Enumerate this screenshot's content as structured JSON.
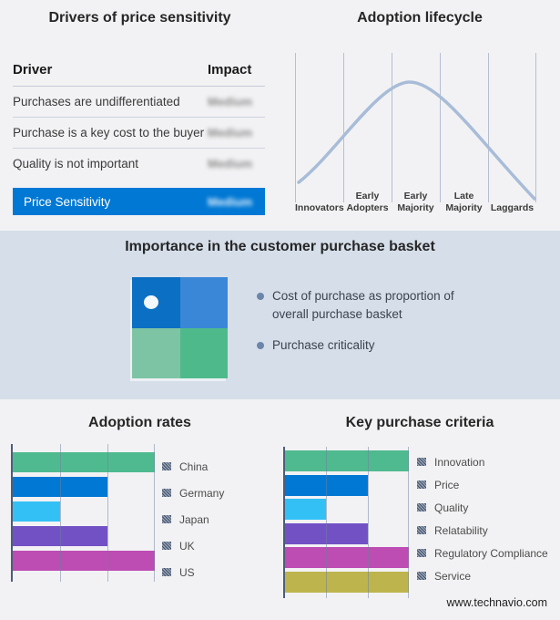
{
  "drivers_table": {
    "title": "Drivers of price sensitivity",
    "columns": {
      "driver": "Driver",
      "impact": "Impact"
    },
    "rows": [
      {
        "driver": "Purchases are undifferentiated",
        "impact": "Medium"
      },
      {
        "driver": "Purchase is a key cost to the buyer",
        "impact": "Medium"
      },
      {
        "driver": "Quality is not important",
        "impact": "Medium"
      }
    ],
    "highlight_row": {
      "driver": "Price Sensitivity",
      "impact": "Medium"
    },
    "highlight_color": "#0078d4",
    "note": "impact values appear blurred in source image"
  },
  "lifecycle": {
    "title": "Adoption lifecycle",
    "stages": [
      "Innovators",
      "Early Adopters",
      "Early Majority",
      "Late Majority",
      "Laggards"
    ],
    "curve_color": "#a8bcd8"
  },
  "basket": {
    "title": "Importance in the customer purchase basket",
    "bullets": [
      "Cost of purchase as proportion of overall purchase basket",
      "Purchase criticality"
    ],
    "quadrant_colors": {
      "tl": "#0b6fc4",
      "tr": "#3a87d8",
      "bl": "#7dc4a4",
      "br": "#4eba8b"
    },
    "marker_dot_color": "#f3f8fb",
    "background": "#d5dee9"
  },
  "adoption_rates_title": "Adoption rates",
  "key_purchase_title": "Key purchase criteria",
  "website": "www.technavio.com",
  "chart_data": [
    {
      "id": "adoption-lifecycle",
      "type": "line",
      "title": "Adoption lifecycle",
      "x_categories": [
        "Innovators",
        "Early Adopters",
        "Early Majority",
        "Late Majority",
        "Laggards"
      ],
      "shape": "bell curve peaking near the Early Majority segment",
      "curve_points_pct_x_y": [
        [
          2,
          13
        ],
        [
          20,
          45
        ],
        [
          35,
          75
        ],
        [
          48,
          100
        ],
        [
          62,
          72
        ],
        [
          80,
          38
        ],
        [
          99,
          2
        ]
      ],
      "y_axis": "adoption volume (unlabeled)",
      "grid": "vertical segment dividers only"
    },
    {
      "id": "adoption-rates",
      "type": "bar",
      "orientation": "horizontal",
      "title": "Adoption rates",
      "categories": [
        "China",
        "Germany",
        "Japan",
        "UK",
        "US"
      ],
      "values": [
        100,
        66.7,
        33.3,
        66.7,
        100
      ],
      "xlim": [
        0,
        100
      ],
      "axis_ticks_unlabeled": [
        0,
        33.3,
        66.7,
        100
      ],
      "colors": [
        "#4fba8f",
        "#0078d4",
        "#33c1f5",
        "#7251c5",
        "#bd4cb3"
      ],
      "legend_position": "right",
      "grid": true
    },
    {
      "id": "key-purchase-criteria",
      "type": "bar",
      "orientation": "horizontal",
      "title": "Key purchase criteria",
      "categories": [
        "Innovation",
        "Price",
        "Quality",
        "Relatability",
        "Regulatory Compliance",
        "Service"
      ],
      "values": [
        100,
        66.7,
        33.3,
        66.7,
        100,
        100
      ],
      "xlim": [
        0,
        100
      ],
      "axis_ticks_unlabeled": [
        0,
        33.3,
        66.7,
        100
      ],
      "colors": [
        "#4fba8f",
        "#0078d4",
        "#33c1f5",
        "#7251c5",
        "#bd4cb3",
        "#bdb44d"
      ],
      "legend_position": "right",
      "grid": true
    }
  ]
}
